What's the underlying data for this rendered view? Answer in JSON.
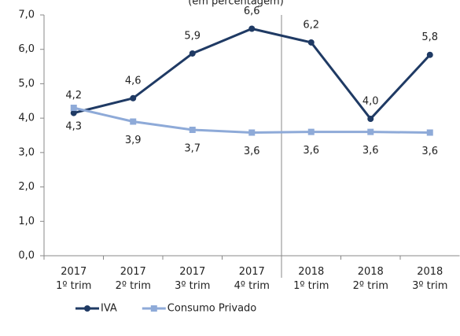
{
  "chart_data": {
    "type": "line",
    "subtitle": "(em percentagem)",
    "categories": [
      "2017 1º trim",
      "2017 2º trim",
      "2017 3º trim",
      "2017 4º trim",
      "2018 1º trim",
      "2018 2º trim",
      "2018 3º trim"
    ],
    "series": [
      {
        "name": "IVA",
        "color": "#1f3a64",
        "values": [
          4.15,
          4.58,
          5.88,
          6.6,
          6.2,
          3.98,
          5.84
        ],
        "value_labels": [
          "4,2",
          "4,6",
          "5,9",
          "6,6",
          "6,2",
          "4,0",
          "5,8"
        ],
        "label_position": "above"
      },
      {
        "name": "Consumo Privado",
        "color": "#8eaad8",
        "values": [
          4.3,
          3.9,
          3.66,
          3.58,
          3.6,
          3.6,
          3.58
        ],
        "value_labels": [
          "4,3",
          "3,9",
          "3,7",
          "3,6",
          "3,6",
          "3,6",
          "3,6"
        ],
        "label_position": "below"
      }
    ],
    "ylim": [
      0,
      7
    ],
    "yticks": [
      {
        "value": 0,
        "label": "0,0"
      },
      {
        "value": 1,
        "label": "1,0"
      },
      {
        "value": 2,
        "label": "2,0"
      },
      {
        "value": 3,
        "label": "3,0"
      },
      {
        "value": 4,
        "label": "4,0"
      },
      {
        "value": 5,
        "label": "5,0"
      },
      {
        "value": 6,
        "label": "6,0"
      },
      {
        "value": 7,
        "label": "7,0"
      }
    ],
    "grid": false,
    "legend": "bottom-left"
  }
}
